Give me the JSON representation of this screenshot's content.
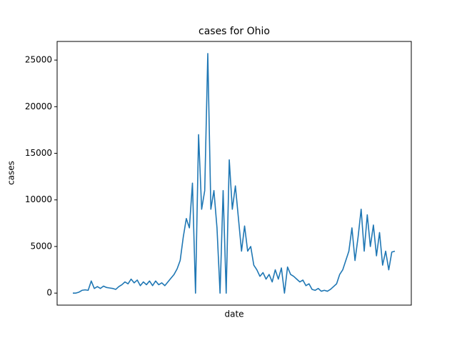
{
  "chart_data": {
    "type": "line",
    "title": "cases for Ohio",
    "x_label": "date",
    "y_label": "cases",
    "categories": [
      null,
      null,
      null,
      null,
      null,
      null,
      null,
      null,
      null,
      null,
      null,
      null,
      null,
      null,
      null,
      null,
      null,
      null,
      null,
      null,
      null,
      null,
      null,
      null,
      null,
      null,
      null,
      null,
      null,
      null,
      null,
      null,
      null,
      null,
      null,
      null,
      null,
      null,
      null,
      null,
      null,
      null,
      null,
      null,
      null,
      null,
      null,
      null,
      null,
      null,
      null,
      null,
      null,
      null,
      null,
      null,
      null,
      null,
      null,
      null,
      null,
      null,
      null,
      null,
      null,
      null,
      null,
      null,
      null,
      null,
      null,
      null,
      null,
      null,
      null,
      null,
      null,
      null,
      null,
      null,
      null,
      null,
      null,
      null,
      null,
      null,
      null,
      null,
      null,
      null,
      null,
      null,
      null,
      null,
      null,
      null,
      null,
      null,
      null,
      null,
      null,
      null,
      null,
      null,
      null,
      null
    ],
    "series": [
      {
        "name": "cases",
        "color": "#1f77b4",
        "values": [
          0,
          0,
          100,
          300,
          350,
          300,
          1300,
          500,
          700,
          500,
          750,
          600,
          550,
          500,
          400,
          700,
          900,
          1200,
          1000,
          1500,
          1100,
          1400,
          800,
          1200,
          900,
          1300,
          800,
          1300,
          900,
          1100,
          800,
          1200,
          1600,
          2000,
          2600,
          3500,
          6000,
          8000,
          7000,
          11800,
          0,
          17000,
          9000,
          11000,
          25700,
          9000,
          11000,
          7000,
          0,
          11000,
          0,
          14300,
          9000,
          11500,
          8000,
          4500,
          7200,
          4500,
          5000,
          3000,
          2500,
          1800,
          2200,
          1500,
          2000,
          1200,
          2500,
          1500,
          2700,
          0,
          2800,
          2000,
          1800,
          1500,
          1200,
          1400,
          800,
          1000,
          400,
          300,
          500,
          200,
          300,
          200,
          400,
          700,
          1000,
          2000,
          2500,
          3500,
          4500,
          7000,
          3500,
          6000,
          9000,
          4500,
          8400,
          5000,
          7300,
          4000,
          6500,
          3000,
          4500,
          2500,
          4400,
          4500
        ]
      }
    ],
    "ylim": [
      -1290,
      27000
    ],
    "yticks": [
      0,
      5000,
      10000,
      15000,
      20000,
      25000
    ],
    "grid": false
  }
}
